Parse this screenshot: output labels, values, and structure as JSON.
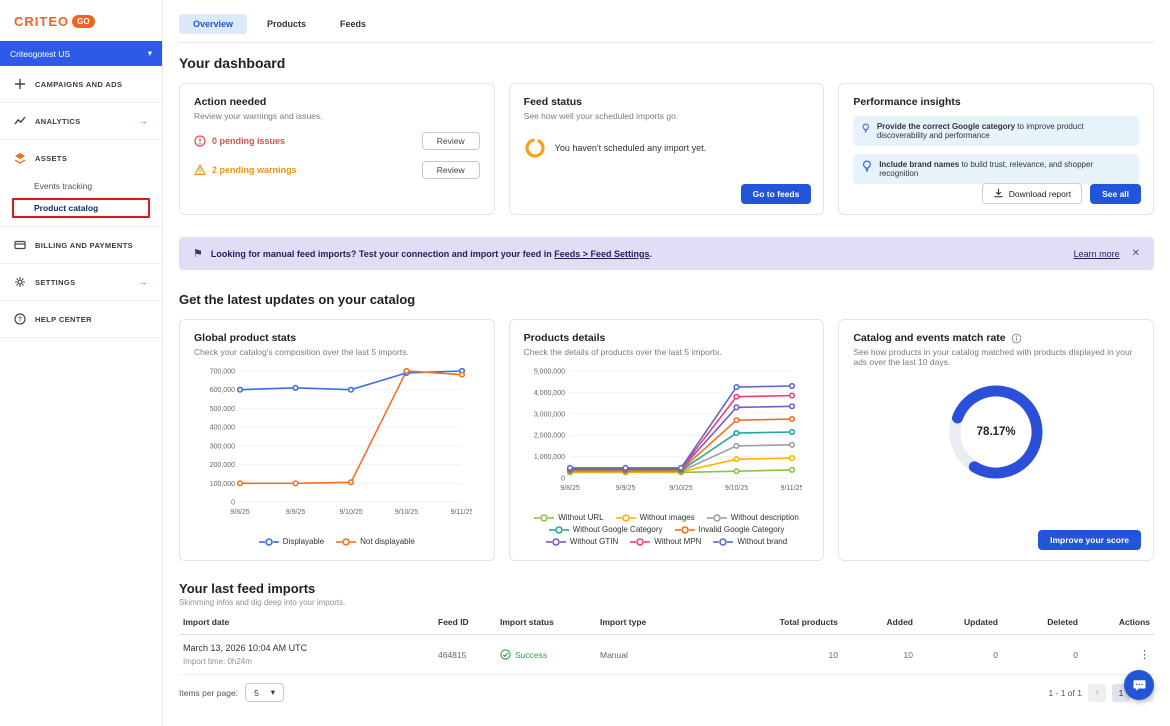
{
  "colors": {
    "accent_blue": "#2355d8",
    "brand_orange": "#f26322",
    "warning_orange": "#e8921c",
    "error_red": "#d9534f",
    "success_green": "#2e9e44",
    "donut_blue": "#2b4fd8"
  },
  "sidebar": {
    "logo": "CRITEO",
    "logo_badge": "GO",
    "account_selector": {
      "label": "Criteogotest US",
      "chevron": "▾"
    },
    "arrow": "→",
    "items": {
      "campaigns": "CAMPAIGNS AND ADS",
      "analytics": "ANALYTICS",
      "assets": "ASSETS",
      "billing": "BILLING AND PAYMENTS",
      "settings": "SETTINGS",
      "help": "HELP CENTER"
    },
    "assets_sub": {
      "events": "Events tracking",
      "catalog": "Product catalog"
    }
  },
  "tabs": {
    "overview": "Overview",
    "products": "Products",
    "feeds": "Feeds"
  },
  "dashboard": {
    "title": "Your dashboard",
    "action_card": {
      "title": "Action needed",
      "subtitle": "Review your warnings and issues.",
      "issues_label": "0 pending issues",
      "warnings_label": "2 pending warnings",
      "review_label": "Review"
    },
    "feed_card": {
      "title": "Feed status",
      "subtitle": "See how well your scheduled imports go.",
      "empty_message": "You haven't scheduled any import yet.",
      "cta_label": "Go to feeds"
    },
    "insights_card": {
      "title": "Performance insights",
      "tips": [
        {
          "bold": "Provide the correct Google category",
          "rest": " to improve product discoverability and performance"
        },
        {
          "bold": "Include brand names",
          "rest": " to build trust, relevance, and shopper recognition"
        }
      ],
      "download_label": "Download report",
      "see_all_label": "See all"
    }
  },
  "banner": {
    "lead": "Looking for manual feed imports? Test your connection and import your feed in",
    "link": "Feeds > Feed Settings",
    "tail": ".",
    "learn_more": "Learn more",
    "close": "✕"
  },
  "updates": {
    "title": "Get the latest updates on your catalog",
    "global_stats": {
      "title": "Global product stats",
      "subtitle": "Check your catalog's composition over the last 5 imports."
    },
    "product_details": {
      "title": "Products details",
      "subtitle": "Check the details of products over the last 5 imports."
    },
    "match_rate": {
      "title": "Catalog and events match rate",
      "subtitle": "See how products in your catalog matched with products displayed in your ads over the last 10 days.",
      "value": "78.17%",
      "cta_label": "Improve your score"
    }
  },
  "chart_data": [
    {
      "type": "line",
      "title": "Global product stats",
      "x": [
        "9/8/25",
        "9/9/25",
        "9/10/25",
        "9/10/25",
        "9/11/25"
      ],
      "ylim": [
        0,
        700000
      ],
      "ystep": 100000,
      "legend_position": "bottom",
      "series": [
        {
          "name": "Displayable",
          "color": "#3d6fe0",
          "values": [
            600000,
            610000,
            600000,
            690000,
            700000
          ]
        },
        {
          "name": "Not displayable",
          "color": "#f4701f",
          "values": [
            100000,
            100000,
            105000,
            700000,
            680000
          ]
        }
      ]
    },
    {
      "type": "line",
      "title": "Products details",
      "x": [
        "9/8/25",
        "9/9/25",
        "9/10/25",
        "9/10/25",
        "9/11/25"
      ],
      "ylim": [
        0,
        5000000
      ],
      "ystep": 1000000,
      "legend_position": "bottom",
      "series": [
        {
          "name": "Without URL",
          "color": "#8bc34a",
          "values": [
            260000,
            260000,
            260000,
            320000,
            380000
          ]
        },
        {
          "name": "Without images",
          "color": "#ffb300",
          "values": [
            290000,
            290000,
            290000,
            880000,
            930000
          ]
        },
        {
          "name": "Without description",
          "color": "#9e9e9e",
          "values": [
            320000,
            320000,
            320000,
            1500000,
            1550000
          ]
        },
        {
          "name": "Without Google Category",
          "color": "#26a69a",
          "values": [
            350000,
            350000,
            350000,
            2100000,
            2150000
          ]
        },
        {
          "name": "Invalid Google Category",
          "color": "#f4701f",
          "values": [
            380000,
            380000,
            380000,
            2700000,
            2750000
          ]
        },
        {
          "name": "Without GTIN",
          "color": "#7e57c2",
          "values": [
            410000,
            410000,
            410000,
            3300000,
            3350000
          ]
        },
        {
          "name": "Without MPN",
          "color": "#ec407a",
          "values": [
            440000,
            440000,
            440000,
            3800000,
            3850000
          ]
        },
        {
          "name": "Without brand",
          "color": "#5c6bc0",
          "values": [
            470000,
            470000,
            470000,
            4250000,
            4300000
          ]
        }
      ]
    },
    {
      "type": "donut",
      "title": "Catalog and events match rate",
      "value": 78.17,
      "label": "78.17%"
    }
  ],
  "imports": {
    "title": "Your last feed imports",
    "subtitle": "Skimming infos and dig deep into your imports.",
    "columns": [
      "Import date",
      "Feed ID",
      "Import status",
      "Import type",
      "Total products",
      "Added",
      "Updated",
      "Deleted",
      "Actions"
    ],
    "rows": [
      {
        "date": "March 13, 2026 10:04 AM UTC",
        "import_time": "Import time: 0h24m",
        "feed_id": "464815",
        "status": "Success",
        "type": "Manual",
        "total": "10",
        "added": "10",
        "updated": "0",
        "deleted": "0",
        "actions": "⋮"
      }
    ],
    "pagination": {
      "items_per_page_label": "Items per page:",
      "items_per_page_value": "5",
      "select_chevron": "▾",
      "range": "1 - 1 of 1",
      "prev": "‹",
      "page": "1",
      "next": "›"
    }
  }
}
